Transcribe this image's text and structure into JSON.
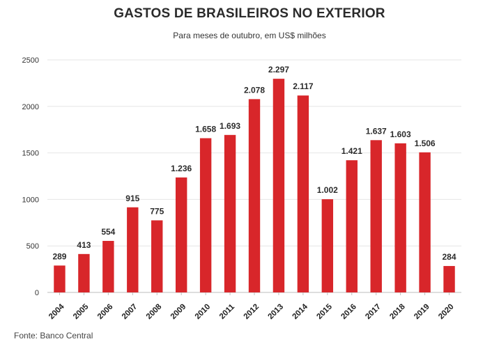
{
  "chart_data": {
    "type": "bar",
    "title": "GASTOS DE BRASILEIROS NO EXTERIOR",
    "subtitle": "Para meses de outubro, em US$ milhões",
    "source": "Fonte: Banco Central",
    "categories": [
      "2004",
      "2005",
      "2006",
      "2007",
      "2008",
      "2009",
      "2010",
      "2011",
      "2012",
      "2013",
      "2014",
      "2015",
      "2016",
      "2017",
      "2018",
      "2019",
      "2020"
    ],
    "values": [
      289,
      413,
      554,
      915,
      775,
      1236,
      1658,
      1693,
      2078,
      2297,
      2117,
      1002,
      1421,
      1637,
      1603,
      1506,
      284
    ],
    "value_labels": [
      "289",
      "413",
      "554",
      "915",
      "775",
      "1.236",
      "1.658",
      "1.693",
      "2.078",
      "2.297",
      "2.117",
      "1.002",
      "1.421",
      "1.637",
      "1.603",
      "1.506",
      "284"
    ],
    "ylim": [
      0,
      2500
    ],
    "yticks": [
      0,
      500,
      1000,
      1500,
      2000,
      2500
    ],
    "ytick_labels": [
      "0",
      "500",
      "1000",
      "1500",
      "2000",
      "2500"
    ],
    "grid": true,
    "bar_color": "#d8262a",
    "xlabel": "",
    "ylabel": ""
  }
}
